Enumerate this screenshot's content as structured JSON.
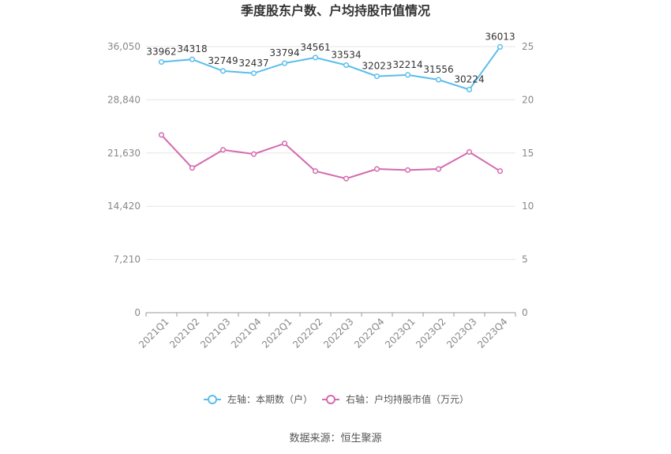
{
  "chart_data": {
    "type": "line",
    "title": "季度股东户数、户均持股市值情况",
    "categories": [
      "2021Q1",
      "2021Q2",
      "2021Q3",
      "2021Q4",
      "2022Q1",
      "2022Q2",
      "2022Q3",
      "2022Q4",
      "2023Q1",
      "2023Q2",
      "2023Q3",
      "2023Q4"
    ],
    "left_axis": {
      "ticks": [
        "0",
        "7,210",
        "14,420",
        "21,630",
        "28,840",
        "36,050"
      ],
      "min": 0,
      "max": 36050
    },
    "right_axis": {
      "ticks": [
        "0",
        "5",
        "10",
        "15",
        "20",
        "25"
      ],
      "min": 0,
      "max": 25
    },
    "series": [
      {
        "name": "左轴：本期数（户）",
        "axis": "left",
        "color": "#5bbdeb",
        "values": [
          33962,
          34318,
          32749,
          32437,
          33794,
          34561,
          33534,
          32023,
          32214,
          31556,
          30224,
          36013
        ],
        "labels": [
          "33962",
          "34318",
          "32749",
          "32437",
          "33794",
          "34561",
          "33534",
          "32023",
          "32214",
          "31556",
          "30224",
          "36013"
        ]
      },
      {
        "name": "右轴：户均持股市值（万元）",
        "axis": "right",
        "color": "#d46aaf",
        "values": [
          16.7,
          13.6,
          15.3,
          14.9,
          15.9,
          13.3,
          12.6,
          13.5,
          13.4,
          13.5,
          15.1,
          13.3
        ]
      }
    ],
    "grid": true,
    "legend_position": "bottom"
  },
  "footer": {
    "source": "数据来源：恒生聚源"
  }
}
